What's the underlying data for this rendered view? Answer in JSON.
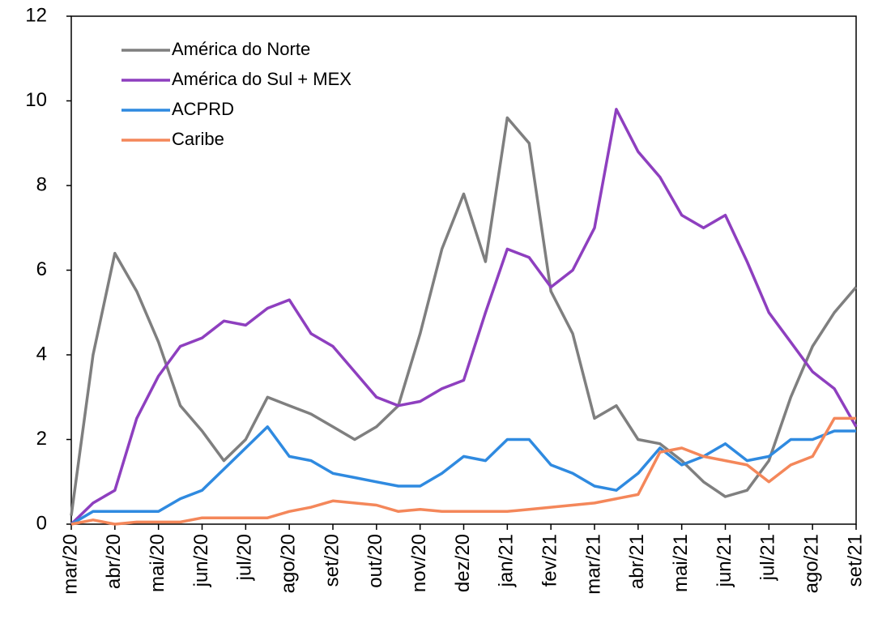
{
  "chart_data": {
    "type": "line",
    "x": [
      0,
      0.5,
      1,
      1.5,
      2,
      2.5,
      3,
      3.5,
      4,
      4.5,
      5,
      5.5,
      6,
      6.5,
      7,
      7.5,
      8,
      8.5,
      9,
      9.5,
      10,
      10.5,
      11,
      11.5,
      12,
      12.5,
      13,
      13.5,
      14,
      14.5,
      15,
      15.5,
      16,
      16.5,
      17,
      17.5,
      18
    ],
    "xlim": [
      0,
      18
    ],
    "xticks": [
      {
        "value": 0,
        "label": "mar/20"
      },
      {
        "value": 1,
        "label": "abr/20"
      },
      {
        "value": 2,
        "label": "mai/20"
      },
      {
        "value": 3,
        "label": "jun/20"
      },
      {
        "value": 4,
        "label": "jul/20"
      },
      {
        "value": 5,
        "label": "ago/20"
      },
      {
        "value": 6,
        "label": "set/20"
      },
      {
        "value": 7,
        "label": "out/20"
      },
      {
        "value": 8,
        "label": "nov/20"
      },
      {
        "value": 9,
        "label": "dez/20"
      },
      {
        "value": 10,
        "label": "jan/21"
      },
      {
        "value": 11,
        "label": "fev/21"
      },
      {
        "value": 12,
        "label": "mar/21"
      },
      {
        "value": 13,
        "label": "abr/21"
      },
      {
        "value": 14,
        "label": "mai/21"
      },
      {
        "value": 15,
        "label": "jun/21"
      },
      {
        "value": 16,
        "label": "jul/21"
      },
      {
        "value": 17,
        "label": "ago/21"
      },
      {
        "value": 18,
        "label": "set/21"
      }
    ],
    "ylim": [
      0,
      12
    ],
    "yticks": [
      0,
      2,
      4,
      6,
      8,
      10,
      12
    ],
    "legend": "upper left",
    "series": [
      {
        "name": "América do Norte",
        "color": "#7f7f7f",
        "values": [
          0.2,
          4.0,
          6.4,
          5.5,
          4.3,
          2.8,
          2.2,
          1.5,
          2.0,
          3.0,
          2.8,
          2.6,
          2.3,
          2.0,
          2.3,
          2.8,
          4.5,
          6.5,
          7.8,
          6.2,
          9.6,
          9.0,
          5.5,
          4.5,
          2.5,
          2.8,
          2.0,
          1.9,
          1.5,
          1.0,
          0.65,
          0.8,
          1.5,
          3.0,
          4.2,
          5.0,
          5.6
        ]
      },
      {
        "name": "América do Sul + MEX",
        "color": "#8e3fbf",
        "values": [
          0,
          0.5,
          0.8,
          2.5,
          3.5,
          4.2,
          4.4,
          4.8,
          4.7,
          5.1,
          5.3,
          4.5,
          4.2,
          3.6,
          3.0,
          2.8,
          2.9,
          3.2,
          3.4,
          5.0,
          6.5,
          6.3,
          5.6,
          6.0,
          7.0,
          9.8,
          8.8,
          8.2,
          7.3,
          7.0,
          7.3,
          6.2,
          5.0,
          4.3,
          3.6,
          3.2,
          2.3
        ]
      },
      {
        "name": "ACPRD",
        "color": "#2f8ae0",
        "values": [
          0,
          0.3,
          0.3,
          0.3,
          0.3,
          0.6,
          0.8,
          1.3,
          1.8,
          2.3,
          1.6,
          1.5,
          1.2,
          1.1,
          1.0,
          0.9,
          0.9,
          1.2,
          1.6,
          1.5,
          2.0,
          2.0,
          1.4,
          1.2,
          0.9,
          0.8,
          1.2,
          1.8,
          1.4,
          1.6,
          1.9,
          1.5,
          1.6,
          2.0,
          2.0,
          2.2,
          2.2
        ]
      },
      {
        "name": "Caribe",
        "color": "#f4875a",
        "values": [
          0,
          0.1,
          0,
          0.05,
          0.05,
          0.05,
          0.15,
          0.15,
          0.15,
          0.15,
          0.3,
          0.4,
          0.55,
          0.5,
          0.45,
          0.3,
          0.35,
          0.3,
          0.3,
          0.3,
          0.3,
          0.35,
          0.4,
          0.45,
          0.5,
          0.6,
          0.7,
          1.7,
          1.8,
          1.6,
          1.5,
          1.4,
          1.0,
          1.4,
          1.6,
          2.5,
          2.5
        ]
      }
    ]
  }
}
